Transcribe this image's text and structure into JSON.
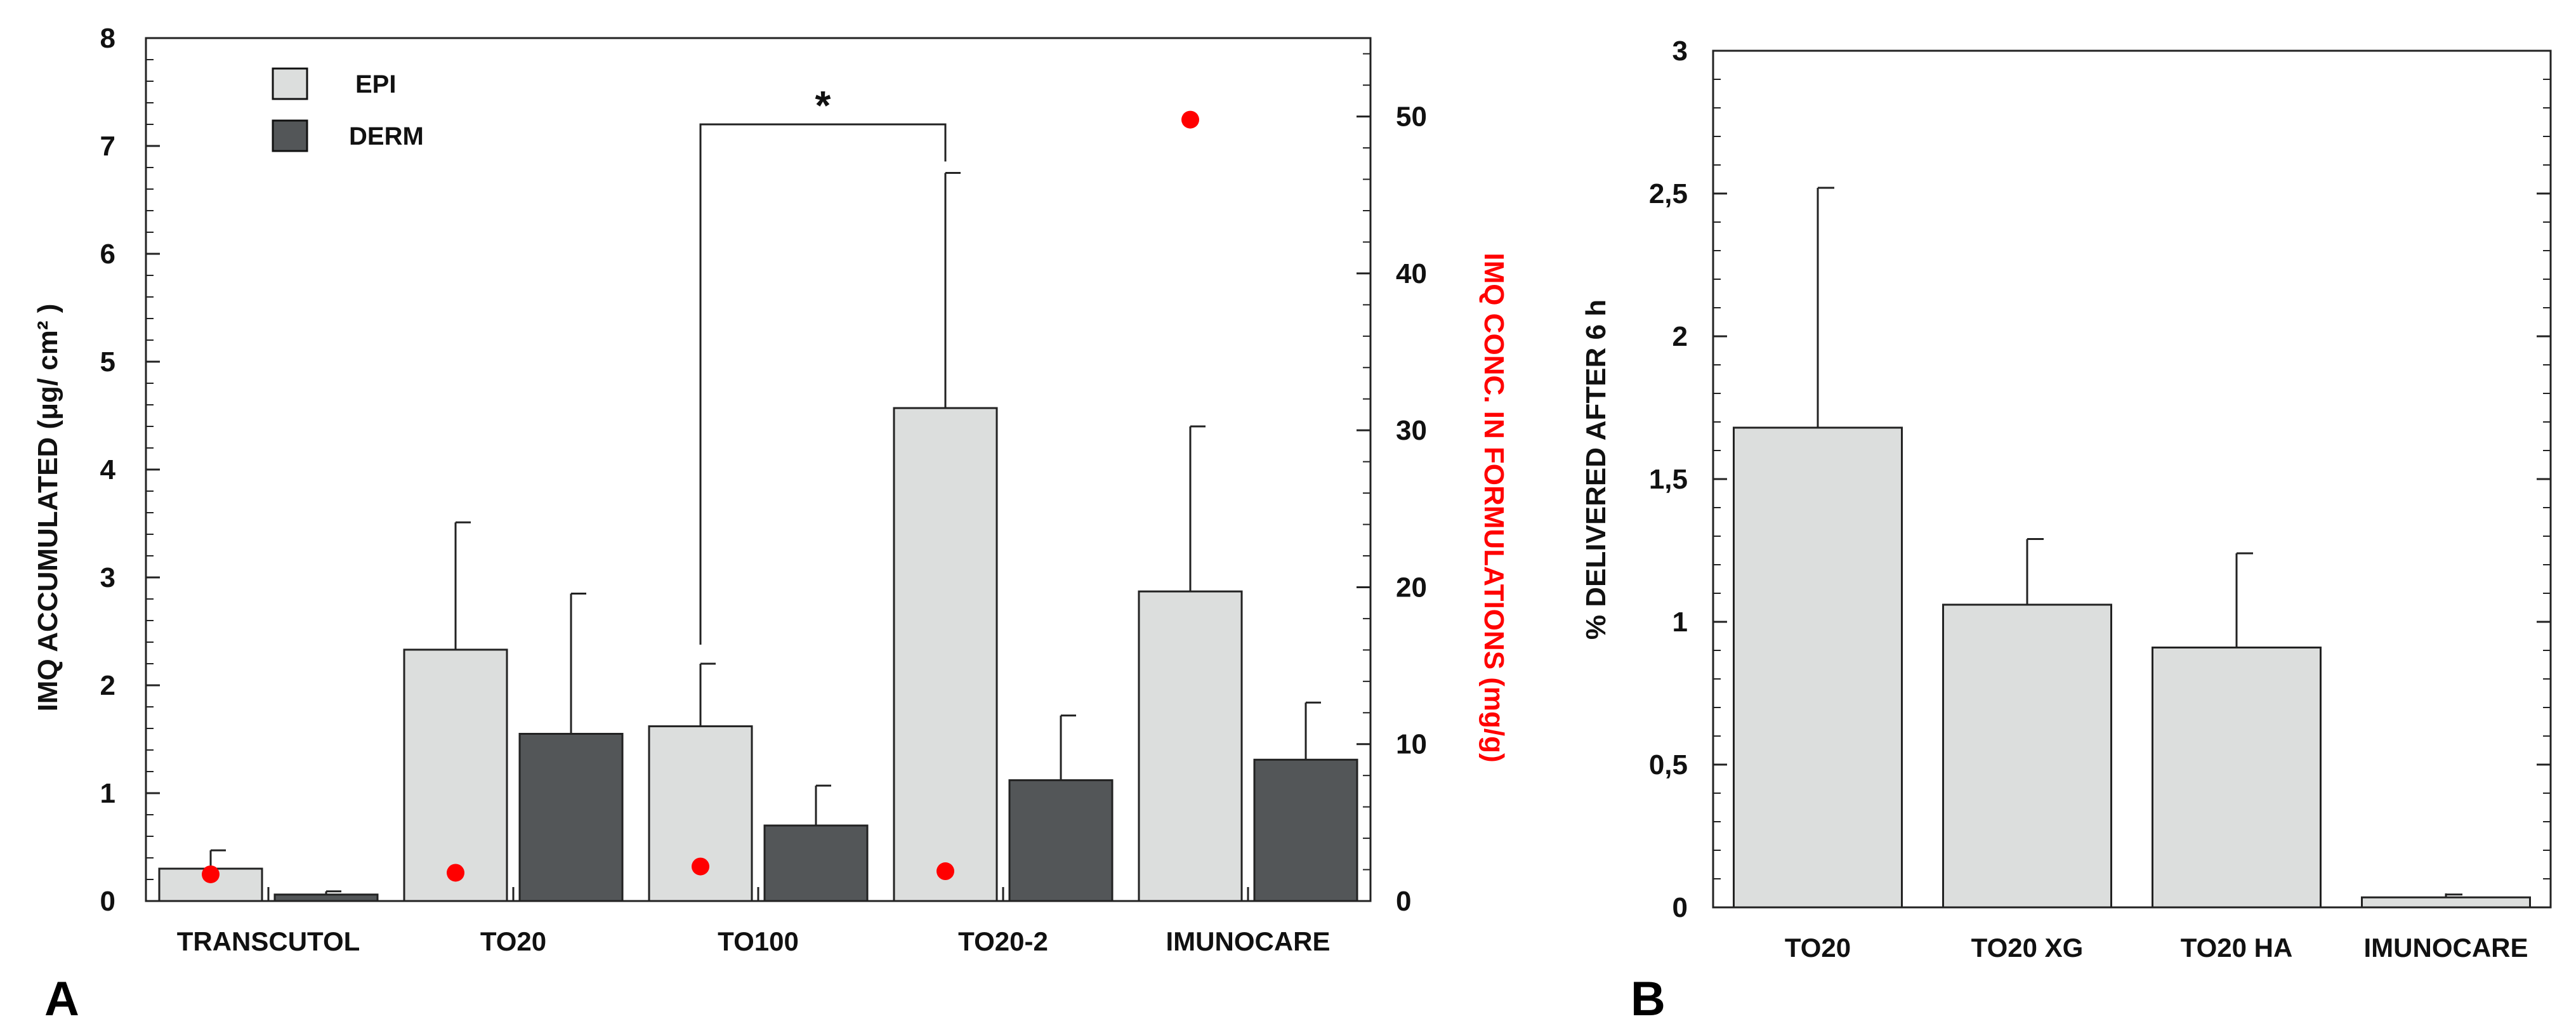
{
  "chart_data": [
    {
      "type": "bar",
      "panel_label": "A",
      "categories": [
        "TRANSCUTOL",
        "TO20",
        "TO100",
        "TO20-2",
        "IMUNOCARE"
      ],
      "series": [
        {
          "name": "EPI",
          "color": "#dcdedd",
          "values": [
            0.3,
            2.33,
            1.62,
            4.57,
            2.87
          ],
          "errors": [
            0.17,
            1.18,
            0.58,
            2.18,
            1.53
          ]
        },
        {
          "name": "DERM",
          "color": "#535658",
          "values": [
            0.06,
            1.55,
            0.7,
            1.12,
            1.31
          ],
          "errors": [
            0.03,
            1.3,
            0.37,
            0.6,
            0.53
          ]
        }
      ],
      "secondary_series": {
        "color": "#ff0000",
        "values": [
          1.7,
          1.8,
          2.2,
          1.9,
          49.8
        ]
      },
      "ylabel": "IMQ ACCUMULATED  (μg/ cm² )",
      "ylabel_right": "IMQ CONC. IN FORMULATIONS  (mg/g)",
      "ylim": [
        0,
        8
      ],
      "yticks": [
        "0",
        "1",
        "2",
        "3",
        "4",
        "5",
        "6",
        "7",
        "8"
      ],
      "ylim_right": [
        0,
        55
      ],
      "yticks_right": [
        "0",
        "10",
        "20",
        "30",
        "40",
        "50"
      ],
      "significance": {
        "from_category": "TO100",
        "to_category": "TO20-2",
        "label": "*",
        "y": 7.2
      },
      "legend_position": "top-left"
    },
    {
      "type": "bar",
      "panel_label": "B",
      "categories": [
        "TO20",
        "TO20 XG",
        "TO20 HA",
        "IMUNOCARE"
      ],
      "series": [
        {
          "name": "",
          "color": "#dcdedd",
          "values": [
            1.68,
            1.06,
            0.91,
            0.035
          ],
          "errors": [
            0.84,
            0.23,
            0.33,
            0.01
          ]
        }
      ],
      "ylabel": "% DELIVERED AFTER 6 h",
      "ylim": [
        0,
        3
      ],
      "yticks": [
        "0",
        "0,5",
        "1",
        "1,5",
        "2",
        "2,5",
        "3"
      ]
    }
  ]
}
